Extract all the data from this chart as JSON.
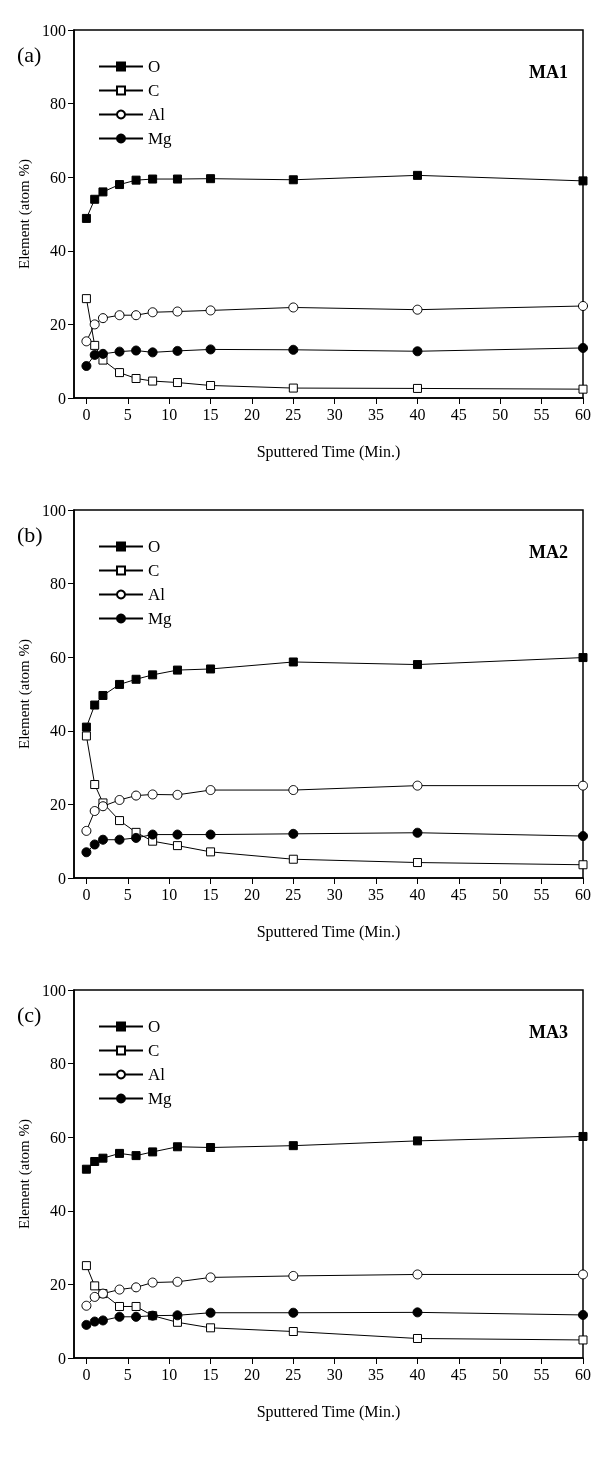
{
  "chart_data": [
    {
      "type": "line",
      "title": "(a)",
      "subtitle": "MA1",
      "xlabel": "Sputtered Time (Min.)",
      "ylabel": "Element (atom %)",
      "x": [
        0,
        1,
        2,
        4,
        6,
        8,
        11,
        15,
        25,
        40,
        60
      ],
      "xlim": [
        -1.5,
        60
      ],
      "xticks": [
        0,
        5,
        10,
        15,
        20,
        25,
        30,
        35,
        40,
        45,
        50,
        55,
        60
      ],
      "ylim": [
        0,
        100
      ],
      "yticks": [
        0,
        20,
        40,
        60,
        80,
        100
      ],
      "grid": false,
      "legend": "top left",
      "line_style": "solid",
      "series": [
        {
          "name": "O",
          "color": "#000000",
          "marker": "square",
          "values": [
            48.8,
            54,
            56,
            58,
            59.2,
            59.5,
            59.5,
            59.6,
            59.3,
            60.5,
            59
          ]
        },
        {
          "name": "C",
          "color": "#000000",
          "marker": "square",
          "values": [
            27,
            14.3,
            10.3,
            6.9,
            5.3,
            4.6,
            4.2,
            3.4,
            2.7,
            2.6,
            2.4
          ]
        },
        {
          "name": "Al",
          "color": "#000000",
          "marker": "circle",
          "values": [
            15.4,
            20,
            21.7,
            22.5,
            22.5,
            23.3,
            23.5,
            23.8,
            24.6,
            24,
            25
          ]
        },
        {
          "name": "Mg",
          "color": "#000000",
          "marker": "circle",
          "values": [
            8.7,
            11.7,
            12,
            12.6,
            12.9,
            12.4,
            12.8,
            13.2,
            13.1,
            12.7,
            13.6
          ]
        }
      ]
    },
    {
      "type": "line",
      "title": "(b)",
      "subtitle": "MA2",
      "xlabel": "Sputtered Time (Min.)",
      "ylabel": "Element (atom %)",
      "x": [
        0,
        1,
        2,
        4,
        6,
        8,
        11,
        15,
        25,
        40,
        60
      ],
      "xlim": [
        -1.5,
        60
      ],
      "xticks": [
        0,
        5,
        10,
        15,
        20,
        25,
        30,
        35,
        40,
        45,
        50,
        55,
        60
      ],
      "ylim": [
        0,
        100
      ],
      "yticks": [
        0,
        20,
        40,
        60,
        80,
        100
      ],
      "grid": false,
      "legend": "top left",
      "line_style": "solid",
      "series": [
        {
          "name": "O",
          "color": "#000000",
          "marker": "square",
          "values": [
            41,
            47,
            49.6,
            52.6,
            54,
            55.2,
            56.5,
            56.8,
            58.7,
            58,
            59.9
          ]
        },
        {
          "name": "C",
          "color": "#000000",
          "marker": "square",
          "values": [
            38.6,
            25.4,
            20.4,
            15.6,
            12.4,
            10,
            8.8,
            7.1,
            5.1,
            4.2,
            3.6
          ]
        },
        {
          "name": "Al",
          "color": "#000000",
          "marker": "circle",
          "values": [
            12.8,
            18.2,
            19.5,
            21.2,
            22.4,
            22.7,
            22.6,
            23.9,
            23.9,
            25.1,
            25.1
          ]
        },
        {
          "name": "Mg",
          "color": "#000000",
          "marker": "circle",
          "values": [
            7,
            9.1,
            10.4,
            10.4,
            10.9,
            11.8,
            11.8,
            11.8,
            12,
            12.3,
            11.4
          ]
        }
      ]
    },
    {
      "type": "line",
      "title": "(c)",
      "subtitle": "MA3",
      "xlabel": "Sputtered Time (Min.)",
      "ylabel": "Element (atom %)",
      "x": [
        0,
        1,
        2,
        4,
        6,
        8,
        11,
        15,
        25,
        40,
        60
      ],
      "xlim": [
        -1.5,
        60
      ],
      "xticks": [
        0,
        5,
        10,
        15,
        20,
        25,
        30,
        35,
        40,
        45,
        50,
        55,
        60
      ],
      "ylim": [
        0,
        100
      ],
      "yticks": [
        0,
        20,
        40,
        60,
        80,
        100
      ],
      "grid": false,
      "legend": "top left",
      "line_style": "solid",
      "series": [
        {
          "name": "O",
          "color": "#000000",
          "marker": "square",
          "values": [
            51.3,
            53.4,
            54.3,
            55.6,
            55,
            56,
            57.4,
            57.2,
            57.7,
            59,
            60.2
          ]
        },
        {
          "name": "C",
          "color": "#000000",
          "marker": "square",
          "values": [
            25.1,
            19.6,
            17.5,
            14,
            14,
            11.5,
            9.7,
            8.2,
            7.2,
            5.3,
            4.9
          ]
        },
        {
          "name": "Al",
          "color": "#000000",
          "marker": "circle",
          "values": [
            14.2,
            16.6,
            17.5,
            18.6,
            19.2,
            20.5,
            20.7,
            21.9,
            22.3,
            22.7,
            22.7
          ]
        },
        {
          "name": "Mg",
          "color": "#000000",
          "marker": "circle",
          "values": [
            9,
            9.9,
            10.2,
            11.2,
            11.2,
            11.5,
            11.6,
            12.3,
            12.3,
            12.4,
            11.7
          ]
        }
      ]
    }
  ]
}
